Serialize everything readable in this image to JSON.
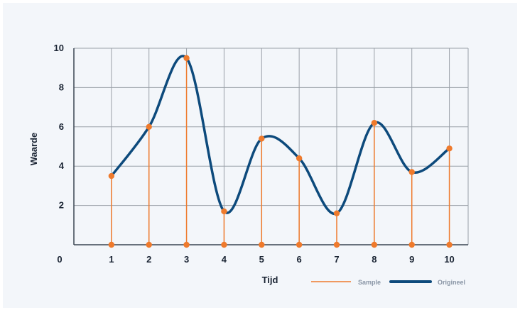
{
  "chart_data": {
    "type": "line",
    "xlabel": "Tijd",
    "ylabel": "Waarde",
    "xlim": [
      0,
      10.5
    ],
    "ylim": [
      0,
      10
    ],
    "x_ticks": [
      "0",
      "1",
      "2",
      "3",
      "4",
      "5",
      "6",
      "7",
      "8",
      "9",
      "10"
    ],
    "y_ticks": [
      "2",
      "4",
      "6",
      "8",
      "10"
    ],
    "grid": true,
    "legend_position": "bottom-right",
    "colors": {
      "sample": "#ef7a2c",
      "origineel": "#0d4a7c",
      "grid": "#9aa0a8"
    },
    "series": [
      {
        "name": "Sample",
        "style": "stem",
        "x": [
          1,
          2,
          3,
          4,
          5,
          6,
          7,
          8,
          9,
          10
        ],
        "values": [
          3.5,
          6.0,
          9.5,
          1.7,
          5.4,
          4.4,
          1.6,
          6.2,
          3.7,
          4.9
        ]
      },
      {
        "name": "Origineel",
        "style": "smooth-line",
        "x": [
          1,
          2,
          3,
          4,
          5,
          6,
          7,
          8,
          9,
          10
        ],
        "values": [
          3.5,
          6.0,
          9.5,
          1.7,
          5.4,
          4.4,
          1.6,
          6.2,
          3.7,
          4.9
        ]
      }
    ]
  }
}
